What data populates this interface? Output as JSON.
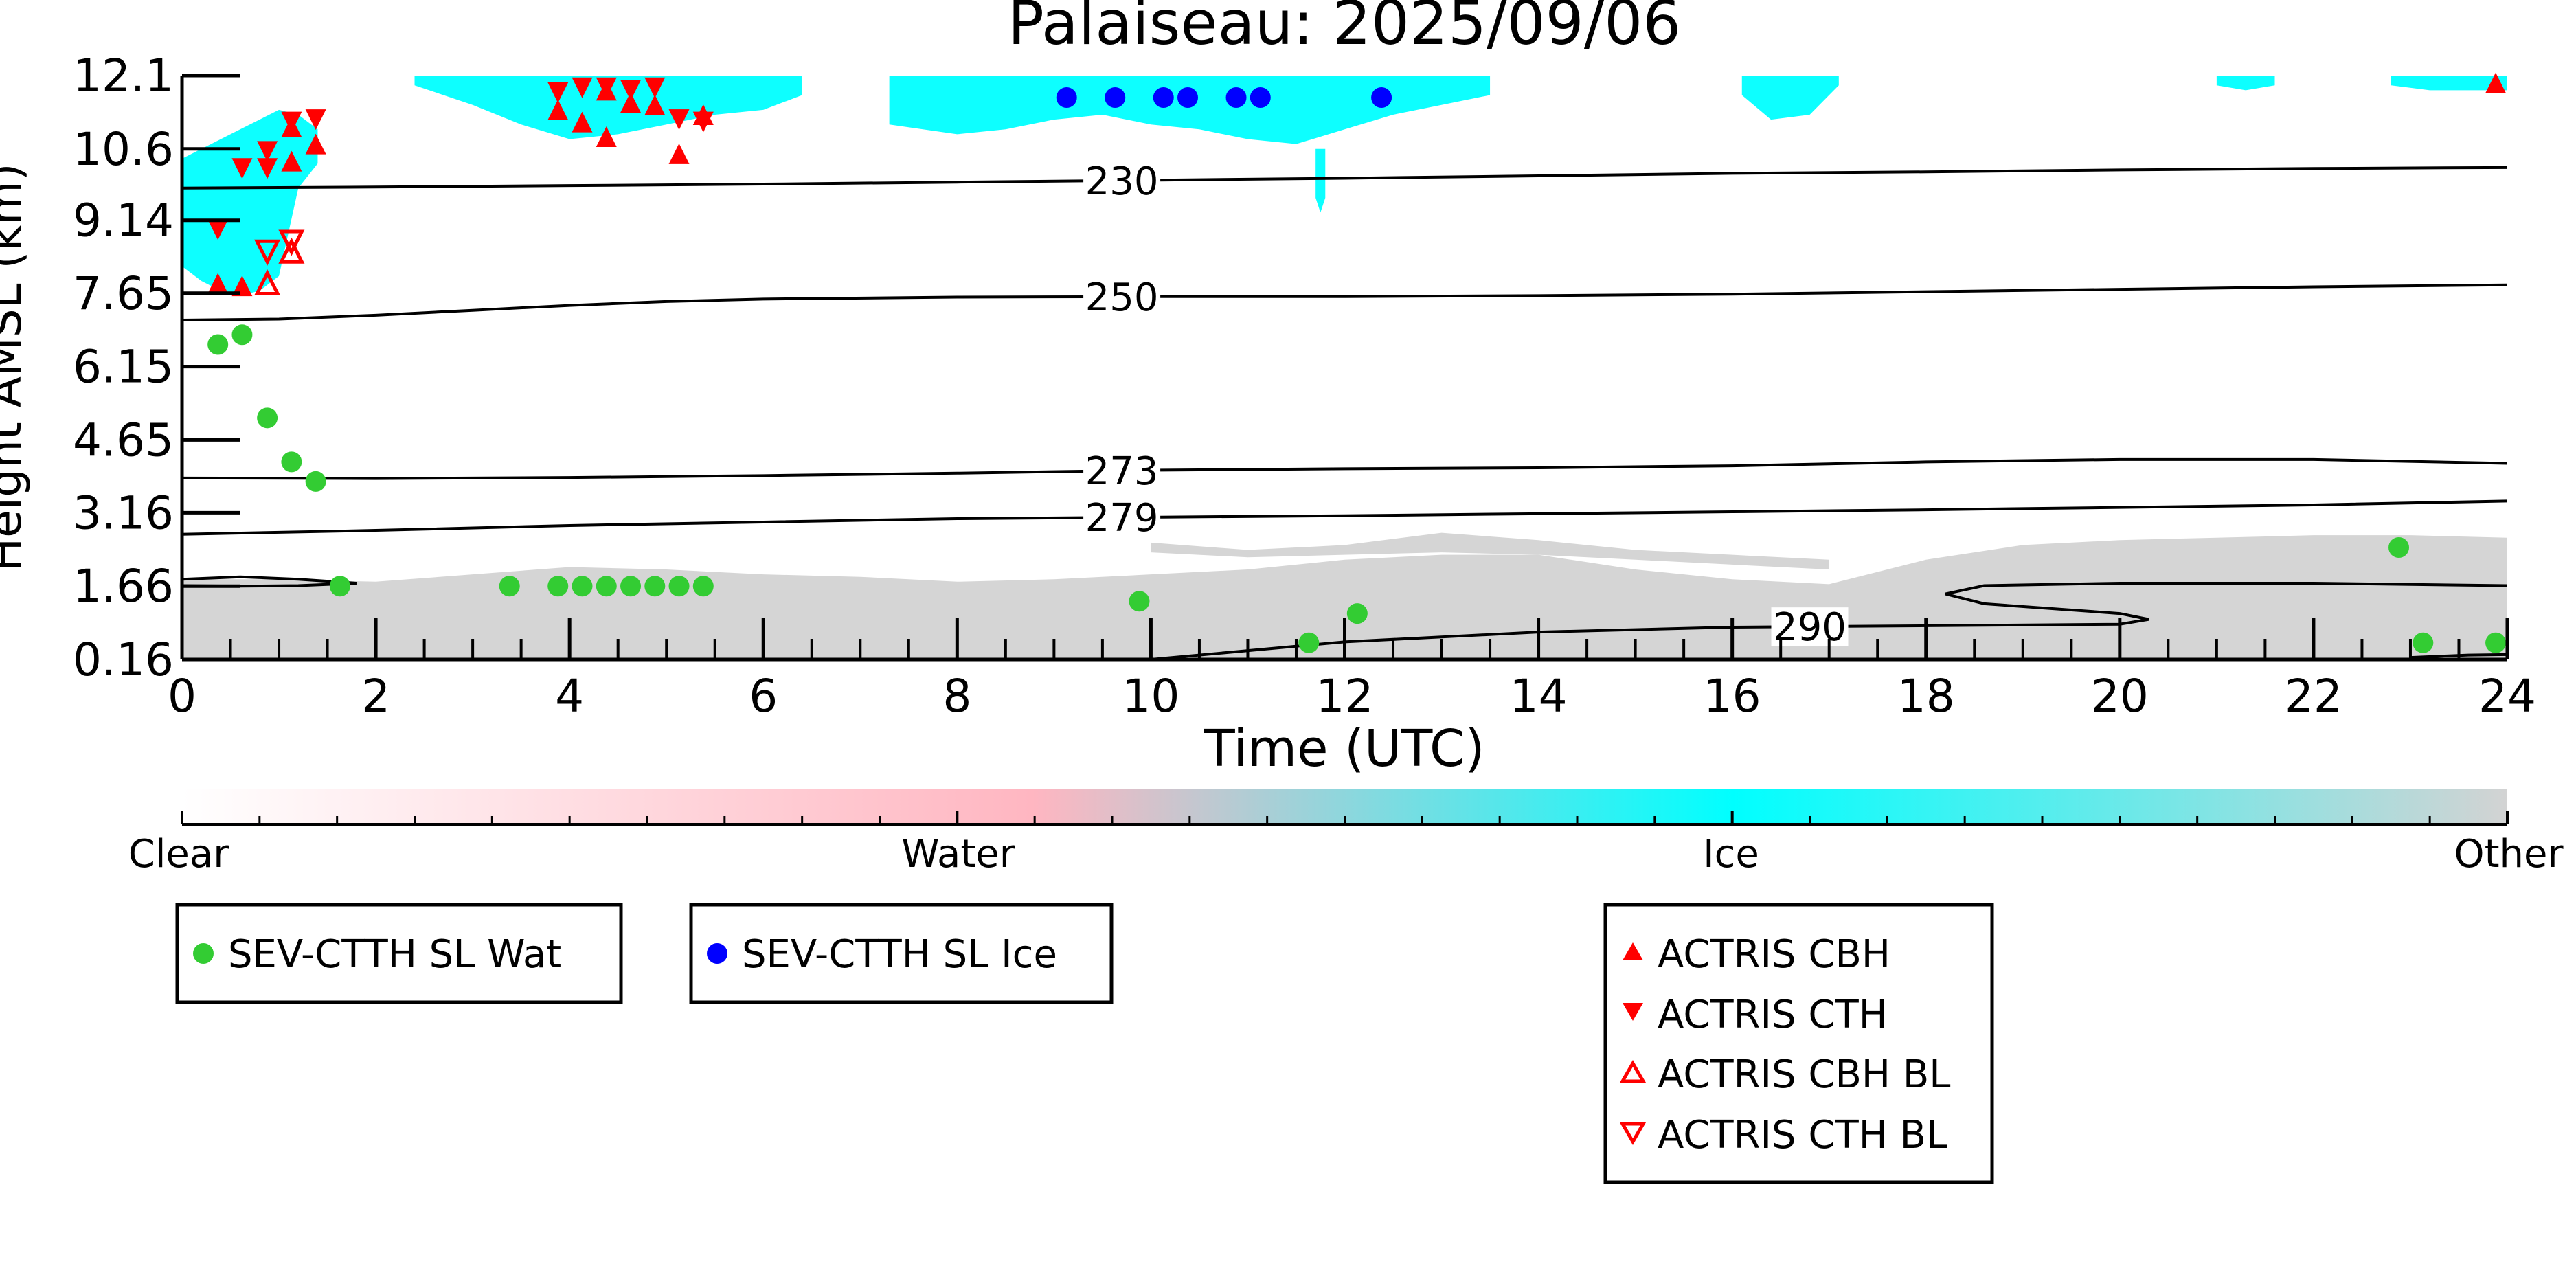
{
  "chart_data": {
    "type": "scatter",
    "title": "Palaiseau: 2025/09/06",
    "xlabel": "Time (UTC)",
    "ylabel": "Height AMSL (km)",
    "xlim": [
      0,
      24
    ],
    "ylim": [
      0.16,
      12.1
    ],
    "x_ticks": [
      0,
      2,
      4,
      6,
      8,
      10,
      12,
      14,
      16,
      18,
      20,
      22,
      24
    ],
    "y_ticks": [
      0.16,
      1.66,
      3.16,
      4.65,
      6.15,
      7.65,
      9.14,
      10.6,
      12.1
    ],
    "y_tick_labels": [
      "0.16",
      "1.66",
      "3.16",
      "4.65",
      "6.15",
      "7.65",
      "9.14",
      "10.6",
      "12.1"
    ],
    "grid": false,
    "colorbar": {
      "labels": [
        "Clear",
        "Water",
        "Ice",
        "Other"
      ],
      "colors": [
        "#ffffff",
        "#ffb6c1",
        "#00ffff",
        "#d3d3d3"
      ]
    },
    "contours": [
      {
        "label": "230",
        "label_x": 9.7,
        "points": [
          [
            0,
            9.8
          ],
          [
            2,
            9.82
          ],
          [
            4,
            9.85
          ],
          [
            6,
            9.88
          ],
          [
            8,
            9.92
          ],
          [
            10,
            9.96
          ],
          [
            12,
            10.0
          ],
          [
            14,
            10.05
          ],
          [
            16,
            10.1
          ],
          [
            18,
            10.13
          ],
          [
            20,
            10.17
          ],
          [
            22,
            10.2
          ],
          [
            24,
            10.22
          ]
        ]
      },
      {
        "label": "250",
        "label_x": 9.7,
        "points": [
          [
            0,
            7.1
          ],
          [
            1,
            7.12
          ],
          [
            2,
            7.2
          ],
          [
            3,
            7.3
          ],
          [
            4,
            7.4
          ],
          [
            5,
            7.48
          ],
          [
            6,
            7.53
          ],
          [
            8,
            7.57
          ],
          [
            10,
            7.58
          ],
          [
            12,
            7.58
          ],
          [
            14,
            7.6
          ],
          [
            16,
            7.63
          ],
          [
            18,
            7.68
          ],
          [
            20,
            7.73
          ],
          [
            22,
            7.78
          ],
          [
            24,
            7.82
          ]
        ]
      },
      {
        "label": "273",
        "label_x": 9.7,
        "points": [
          [
            0,
            3.87
          ],
          [
            2,
            3.86
          ],
          [
            4,
            3.88
          ],
          [
            6,
            3.92
          ],
          [
            8,
            3.97
          ],
          [
            10,
            4.03
          ],
          [
            12,
            4.06
          ],
          [
            14,
            4.08
          ],
          [
            16,
            4.12
          ],
          [
            18,
            4.2
          ],
          [
            20,
            4.25
          ],
          [
            22,
            4.25
          ],
          [
            24,
            4.17
          ]
        ]
      },
      {
        "label": "279",
        "label_x": 9.7,
        "points": [
          [
            0,
            2.72
          ],
          [
            2,
            2.8
          ],
          [
            4,
            2.9
          ],
          [
            6,
            2.97
          ],
          [
            8,
            3.04
          ],
          [
            10,
            3.07
          ],
          [
            12,
            3.1
          ],
          [
            14,
            3.14
          ],
          [
            16,
            3.18
          ],
          [
            18,
            3.22
          ],
          [
            20,
            3.27
          ],
          [
            22,
            3.32
          ],
          [
            24,
            3.4
          ]
        ]
      },
      {
        "label": "290",
        "label_x": 16.8,
        "points": [
          [
            10,
            0.16
          ],
          [
            12,
            0.52
          ],
          [
            14,
            0.72
          ],
          [
            16,
            0.82
          ],
          [
            18,
            0.85
          ],
          [
            20,
            0.88
          ],
          [
            20.3,
            0.98
          ],
          [
            20,
            1.1
          ],
          [
            18.6,
            1.3
          ],
          [
            18.2,
            1.5
          ],
          [
            18.6,
            1.67
          ],
          [
            20,
            1.72
          ],
          [
            22,
            1.72
          ],
          [
            24,
            1.67
          ]
        ]
      },
      {
        "label": "",
        "label_x": 0,
        "points": [
          [
            0,
            1.8
          ],
          [
            0.6,
            1.85
          ],
          [
            1.2,
            1.8
          ],
          [
            1.8,
            1.72
          ],
          [
            1.2,
            1.67
          ],
          [
            0.6,
            1.66
          ],
          [
            0,
            1.67
          ]
        ]
      },
      {
        "label": "",
        "label_x": 0,
        "points": [
          [
            23,
            0.2
          ],
          [
            23.6,
            0.25
          ],
          [
            24,
            0.26
          ]
        ]
      }
    ],
    "series": [
      {
        "name": "SEV-CTTH SL Wat",
        "marker": "circle",
        "color": "#33cc33",
        "points": [
          [
            0.37,
            6.6
          ],
          [
            0.62,
            6.8
          ],
          [
            0.88,
            5.1
          ],
          [
            1.13,
            4.2
          ],
          [
            1.38,
            3.8
          ],
          [
            1.63,
            1.66
          ],
          [
            3.38,
            1.66
          ],
          [
            3.88,
            1.66
          ],
          [
            4.13,
            1.66
          ],
          [
            4.38,
            1.66
          ],
          [
            4.63,
            1.66
          ],
          [
            4.88,
            1.66
          ],
          [
            5.13,
            1.66
          ],
          [
            5.38,
            1.66
          ],
          [
            9.88,
            1.35
          ],
          [
            11.63,
            0.5
          ],
          [
            12.13,
            1.1
          ],
          [
            22.88,
            2.45
          ],
          [
            23.13,
            0.5
          ],
          [
            23.88,
            0.5
          ]
        ]
      },
      {
        "name": "SEV-CTTH SL Ice",
        "marker": "circle",
        "color": "#0000ff",
        "points": [
          [
            9.13,
            11.65
          ],
          [
            9.63,
            11.65
          ],
          [
            10.13,
            11.65
          ],
          [
            10.38,
            11.65
          ],
          [
            10.88,
            11.65
          ],
          [
            11.13,
            11.65
          ],
          [
            12.38,
            11.65
          ]
        ]
      },
      {
        "name": "ACTRIS CBH",
        "marker": "triangle-up",
        "color": "#ff0000",
        "filled": true,
        "points": [
          [
            0.37,
            7.85
          ],
          [
            0.62,
            7.8
          ],
          [
            1.13,
            11.05
          ],
          [
            1.13,
            10.35
          ],
          [
            1.38,
            10.7
          ],
          [
            3.88,
            11.4
          ],
          [
            4.13,
            11.15
          ],
          [
            4.38,
            10.85
          ],
          [
            4.38,
            11.8
          ],
          [
            4.63,
            11.55
          ],
          [
            4.88,
            11.5
          ],
          [
            5.13,
            10.5
          ],
          [
            5.38,
            11.3
          ],
          [
            23.88,
            11.95
          ]
        ]
      },
      {
        "name": "ACTRIS CTH",
        "marker": "triangle-down",
        "color": "#ff0000",
        "filled": true,
        "points": [
          [
            0.37,
            8.95
          ],
          [
            0.62,
            10.2
          ],
          [
            0.88,
            10.55
          ],
          [
            0.88,
            10.2
          ],
          [
            1.13,
            11.15
          ],
          [
            1.38,
            11.2
          ],
          [
            3.88,
            11.75
          ],
          [
            4.13,
            11.85
          ],
          [
            4.38,
            11.85
          ],
          [
            4.63,
            11.8
          ],
          [
            4.88,
            11.85
          ],
          [
            5.13,
            11.2
          ],
          [
            5.38,
            11.15
          ]
        ]
      },
      {
        "name": "ACTRIS CBH BL",
        "marker": "triangle-up",
        "color": "#ff0000",
        "filled": false,
        "points": [
          [
            0.88,
            7.85
          ],
          [
            1.13,
            8.5
          ]
        ]
      },
      {
        "name": "ACTRIS CTH BL",
        "marker": "triangle-down",
        "color": "#ff0000",
        "filled": false,
        "points": [
          [
            0.88,
            8.5
          ],
          [
            1.13,
            8.7
          ]
        ]
      }
    ],
    "legends": [
      {
        "entries": [
          "SEV-CTTH SL Wat"
        ]
      },
      {
        "entries": [
          "SEV-CTTH SL Ice"
        ]
      },
      {
        "entries": [
          "ACTRIS CBH",
          "ACTRIS CTH",
          "ACTRIS CBH BL",
          "ACTRIS CTH BL"
        ]
      }
    ],
    "cloud_regions": [
      {
        "class": "Ice",
        "shape": "band",
        "x": [
          0.0,
          0.2,
          0.4,
          0.6,
          0.8,
          1.0,
          1.2,
          1.4
        ],
        "top": [
          10.4,
          10.6,
          10.8,
          11.0,
          11.2,
          11.4,
          11.3,
          11.0
        ],
        "bottom": [
          8.2,
          7.9,
          7.7,
          7.6,
          7.7,
          8.0,
          9.8,
          10.3
        ]
      },
      {
        "class": "Ice",
        "shape": "band",
        "x": [
          2.4,
          3.0,
          3.5,
          4.0,
          4.5,
          5.0,
          5.5,
          6.0,
          6.4
        ],
        "top": [
          12.1,
          12.1,
          12.1,
          12.1,
          12.1,
          12.1,
          12.1,
          12.1,
          12.1
        ],
        "bottom": [
          11.9,
          11.5,
          11.1,
          10.8,
          10.9,
          11.1,
          11.3,
          11.4,
          11.7
        ]
      },
      {
        "class": "Ice",
        "shape": "band",
        "x": [
          7.3,
          8.0,
          8.5,
          9.0,
          9.5,
          10.0,
          10.5,
          11.0,
          11.5,
          12.0,
          12.5,
          13.0,
          13.5
        ],
        "top": [
          12.1,
          12.1,
          12.1,
          12.1,
          12.1,
          12.1,
          12.1,
          12.1,
          12.1,
          12.1,
          12.1,
          12.1,
          12.1
        ],
        "bottom": [
          11.1,
          10.9,
          11.0,
          11.2,
          11.3,
          11.1,
          11.0,
          10.8,
          10.7,
          11.0,
          11.3,
          11.5,
          11.7
        ]
      },
      {
        "class": "Ice",
        "shape": "band",
        "x": [
          11.7,
          11.75,
          11.8
        ],
        "top": [
          10.6,
          10.6,
          10.6
        ],
        "bottom": [
          9.6,
          9.3,
          9.6
        ]
      },
      {
        "class": "Ice",
        "shape": "band",
        "x": [
          16.1,
          16.4,
          16.8,
          17.1
        ],
        "top": [
          12.1,
          12.1,
          12.1,
          12.1
        ],
        "bottom": [
          11.7,
          11.2,
          11.3,
          11.9
        ]
      },
      {
        "class": "Ice",
        "shape": "band",
        "x": [
          21.0,
          21.3,
          21.6
        ],
        "top": [
          12.1,
          12.1,
          12.1
        ],
        "bottom": [
          11.9,
          11.8,
          11.9
        ]
      },
      {
        "class": "Ice",
        "shape": "band",
        "x": [
          22.8,
          23.2,
          23.6,
          24.0
        ],
        "top": [
          12.1,
          12.1,
          12.1,
          12.1
        ],
        "bottom": [
          11.9,
          11.8,
          11.8,
          11.8
        ]
      },
      {
        "class": "Other",
        "shape": "band",
        "x": [
          0.0,
          1.0,
          2.0,
          3.0,
          4.0,
          5.0,
          6.0,
          7.0,
          8.0,
          9.0,
          10.0,
          11.0,
          12.0,
          13.0,
          14.0,
          15.0,
          16.0,
          17.0,
          18.0,
          19.0,
          20.0,
          21.0,
          22.0,
          23.0,
          24.0
        ],
        "top": [
          1.8,
          1.8,
          1.75,
          1.9,
          2.05,
          2.0,
          1.9,
          1.85,
          1.75,
          1.8,
          1.9,
          2.0,
          2.2,
          2.3,
          2.3,
          2.0,
          1.8,
          1.7,
          2.2,
          2.5,
          2.6,
          2.65,
          2.7,
          2.7,
          2.65
        ],
        "bottom": [
          0.16,
          0.16,
          0.16,
          0.16,
          0.16,
          0.16,
          0.16,
          0.16,
          0.16,
          0.16,
          0.16,
          0.16,
          0.16,
          0.16,
          0.16,
          0.16,
          0.16,
          0.16,
          0.16,
          0.16,
          0.16,
          0.16,
          0.16,
          0.16,
          0.16
        ]
      },
      {
        "class": "Other",
        "shape": "band",
        "x": [
          10.0,
          11.0,
          12.0,
          13.0,
          14.0,
          15.0,
          16.0,
          17.0
        ],
        "top": [
          2.55,
          2.4,
          2.5,
          2.75,
          2.6,
          2.4,
          2.3,
          2.2
        ],
        "bottom": [
          2.35,
          2.25,
          2.3,
          2.35,
          2.3,
          2.2,
          2.1,
          2.0
        ]
      }
    ]
  }
}
